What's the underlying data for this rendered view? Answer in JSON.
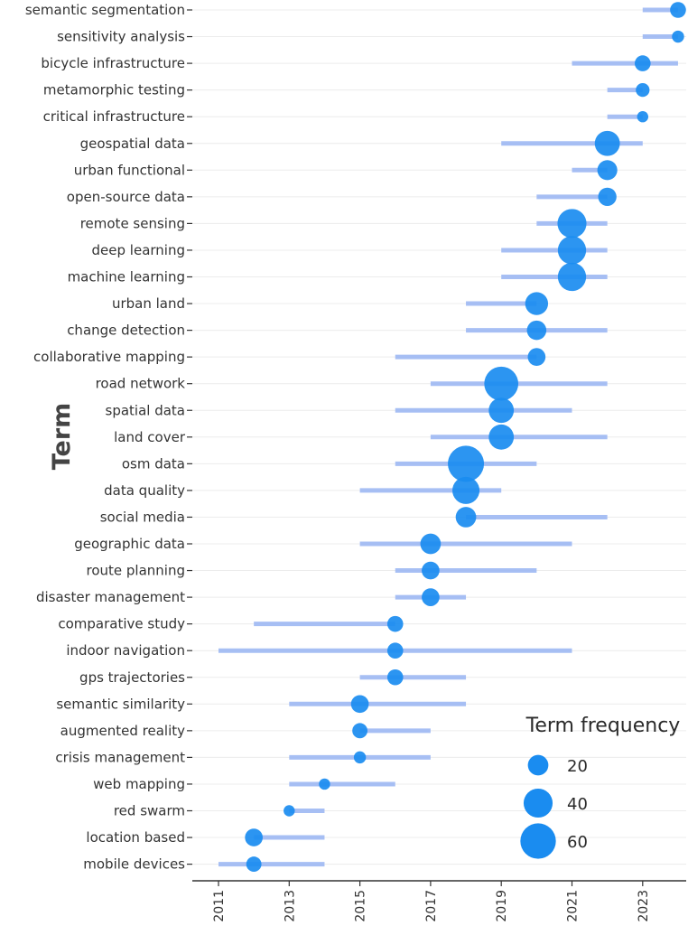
{
  "chart_data": {
    "type": "scatter",
    "title": "",
    "ylabel": "Term",
    "xlabel": "",
    "xlim": [
      2010.8,
      2024.35
    ],
    "x_ticks": [
      2011,
      2013,
      2015,
      2017,
      2019,
      2021,
      2023
    ],
    "x_tick_labels": [
      "2011",
      "2013",
      "2015",
      "2017",
      "2019",
      "2021",
      "2023"
    ],
    "legend": {
      "title": "Term frequency",
      "position": "bottom-right",
      "entries": [
        {
          "label": "20",
          "size": 20
        },
        {
          "label": "40",
          "size": 40
        },
        {
          "label": "60",
          "size": 60
        }
      ]
    },
    "colors": {
      "bubble": "#1a8cf0",
      "range": "#9db8f3",
      "grid": "#ececec",
      "axis": "#333333"
    },
    "terms": [
      {
        "term": "semantic segmentation",
        "start": 2023,
        "end": 2024,
        "peak": 2024,
        "freq": 12
      },
      {
        "term": "sensitivity analysis",
        "start": 2023,
        "end": 2024,
        "peak": 2024,
        "freq": 7
      },
      {
        "term": "bicycle infrastructure",
        "start": 2021,
        "end": 2024,
        "peak": 2023,
        "freq": 12
      },
      {
        "term": "metamorphic testing",
        "start": 2022,
        "end": 2023,
        "peak": 2023,
        "freq": 9
      },
      {
        "term": "critical infrastructure",
        "start": 2022,
        "end": 2023,
        "peak": 2023,
        "freq": 6
      },
      {
        "term": "geospatial data",
        "start": 2019,
        "end": 2023,
        "peak": 2022,
        "freq": 30
      },
      {
        "term": "urban functional",
        "start": 2021,
        "end": 2022,
        "peak": 2022,
        "freq": 19
      },
      {
        "term": "open-source data",
        "start": 2020,
        "end": 2022,
        "peak": 2022,
        "freq": 16
      },
      {
        "term": "remote sensing",
        "start": 2020,
        "end": 2022,
        "peak": 2021,
        "freq": 40
      },
      {
        "term": "deep learning",
        "start": 2019,
        "end": 2022,
        "peak": 2021,
        "freq": 38
      },
      {
        "term": "machine learning",
        "start": 2019,
        "end": 2022,
        "peak": 2021,
        "freq": 38
      },
      {
        "term": "urban land",
        "start": 2018,
        "end": 2020,
        "peak": 2020,
        "freq": 25
      },
      {
        "term": "change detection",
        "start": 2018,
        "end": 2022,
        "peak": 2020,
        "freq": 18
      },
      {
        "term": "collaborative mapping",
        "start": 2016,
        "end": 2020,
        "peak": 2020,
        "freq": 15
      },
      {
        "term": "road network",
        "start": 2017,
        "end": 2022,
        "peak": 2019,
        "freq": 55
      },
      {
        "term": "spatial data",
        "start": 2016,
        "end": 2021,
        "peak": 2019,
        "freq": 30
      },
      {
        "term": "land cover",
        "start": 2017,
        "end": 2022,
        "peak": 2019,
        "freq": 30
      },
      {
        "term": "osm data",
        "start": 2016,
        "end": 2020,
        "peak": 2018,
        "freq": 62
      },
      {
        "term": "data quality",
        "start": 2015,
        "end": 2019,
        "peak": 2018,
        "freq": 35
      },
      {
        "term": "social media",
        "start": 2018,
        "end": 2022,
        "peak": 2018,
        "freq": 20
      },
      {
        "term": "geographic data",
        "start": 2015,
        "end": 2021,
        "peak": 2017,
        "freq": 20
      },
      {
        "term": "route planning",
        "start": 2016,
        "end": 2020,
        "peak": 2017,
        "freq": 15
      },
      {
        "term": "disaster management",
        "start": 2016,
        "end": 2018,
        "peak": 2017,
        "freq": 15
      },
      {
        "term": "comparative study",
        "start": 2012,
        "end": 2016,
        "peak": 2016,
        "freq": 12
      },
      {
        "term": "indoor navigation",
        "start": 2011,
        "end": 2021,
        "peak": 2016,
        "freq": 12
      },
      {
        "term": "gps trajectories",
        "start": 2015,
        "end": 2018,
        "peak": 2016,
        "freq": 12
      },
      {
        "term": "semantic similarity",
        "start": 2013,
        "end": 2018,
        "peak": 2015,
        "freq": 15
      },
      {
        "term": "augmented reality",
        "start": 2015,
        "end": 2017,
        "peak": 2015,
        "freq": 11
      },
      {
        "term": "crisis management",
        "start": 2013,
        "end": 2017,
        "peak": 2015,
        "freq": 7
      },
      {
        "term": "web mapping",
        "start": 2013,
        "end": 2016,
        "peak": 2014,
        "freq": 6
      },
      {
        "term": "red swarm",
        "start": 2013,
        "end": 2014,
        "peak": 2013,
        "freq": 6
      },
      {
        "term": "location based",
        "start": 2012,
        "end": 2014,
        "peak": 2012,
        "freq": 15
      },
      {
        "term": "mobile devices",
        "start": 2011,
        "end": 2014,
        "peak": 2012,
        "freq": 11
      }
    ]
  }
}
